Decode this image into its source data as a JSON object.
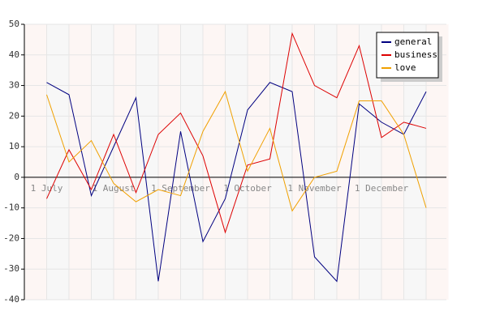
{
  "chart_data": {
    "type": "line",
    "categories": [
      "1 July",
      null,
      null,
      "1 August",
      null,
      null,
      "1 September",
      null,
      null,
      "1 October",
      null,
      null,
      "1 November",
      null,
      null,
      "1 December",
      null,
      null
    ],
    "series": [
      {
        "name": "general",
        "color": "#000080",
        "values": [
          31,
          27,
          -6,
          10,
          26,
          -34,
          15,
          -21,
          -7,
          22,
          31,
          28,
          -26,
          -34,
          24,
          18,
          14,
          28
        ]
      },
      {
        "name": "business",
        "color": "#dd0000",
        "values": [
          -7,
          9,
          -4,
          14,
          -5,
          14,
          21,
          7,
          -18,
          4,
          6,
          47,
          30,
          26,
          43,
          13,
          18,
          16
        ]
      },
      {
        "name": "love",
        "color": "#f0a000",
        "values": [
          27,
          5,
          12,
          -2,
          -8,
          -4,
          -6,
          15,
          28,
          2,
          16,
          -11,
          0,
          2,
          25,
          25,
          14,
          -10
        ]
      }
    ],
    "ylim": [
      -40,
      50
    ],
    "yticks": [
      -40,
      -30,
      -20,
      -10,
      0,
      10,
      20,
      30,
      40,
      50
    ],
    "grid": true,
    "legend": "top-right"
  }
}
